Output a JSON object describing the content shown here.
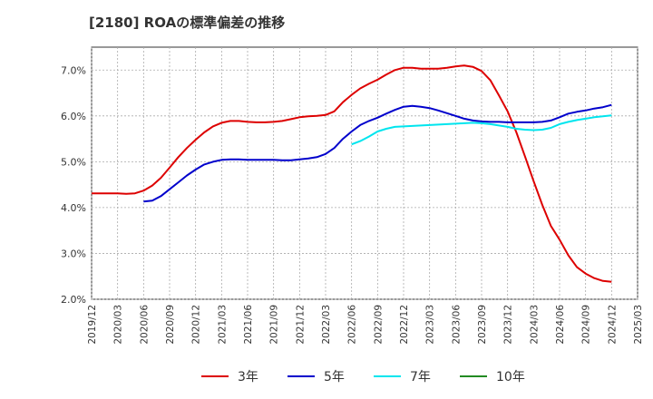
{
  "chart_data": {
    "type": "line",
    "title": "[2180]  ROAの標準偏差の推移",
    "xlabel": "",
    "ylabel": "",
    "ylim": [
      2.0,
      7.5
    ],
    "y_ticks": [
      "2.0%",
      "3.0%",
      "4.0%",
      "5.0%",
      "6.0%",
      "7.0%"
    ],
    "y_tick_values": [
      2.0,
      3.0,
      4.0,
      5.0,
      6.0,
      7.0
    ],
    "x_tick_labels": [
      "2019/12",
      "2020/03",
      "2020/06",
      "2020/09",
      "2020/12",
      "2021/03",
      "2021/06",
      "2021/09",
      "2021/12",
      "2022/03",
      "2022/06",
      "2022/09",
      "2022/12",
      "2023/03",
      "2023/06",
      "2023/09",
      "2023/12",
      "2024/03",
      "2024/06",
      "2024/09",
      "2024/12",
      "2025/03"
    ],
    "grid": true,
    "legend_position": "bottom",
    "series": [
      {
        "name": "3年",
        "color": "#dd0000",
        "x": [
          "2019/12",
          "2020/01",
          "2020/02",
          "2020/03",
          "2020/04",
          "2020/05",
          "2020/06",
          "2020/07",
          "2020/08",
          "2020/09",
          "2020/10",
          "2020/11",
          "2020/12",
          "2021/01",
          "2021/02",
          "2021/03",
          "2021/04",
          "2021/05",
          "2021/06",
          "2021/07",
          "2021/08",
          "2021/09",
          "2021/10",
          "2021/11",
          "2021/12",
          "2022/01",
          "2022/02",
          "2022/03",
          "2022/04",
          "2022/05",
          "2022/06",
          "2022/07",
          "2022/08",
          "2022/09",
          "2022/10",
          "2022/11",
          "2022/12",
          "2023/01",
          "2023/02",
          "2023/03",
          "2023/04",
          "2023/05",
          "2023/06",
          "2023/07",
          "2023/08",
          "2023/09",
          "2023/10",
          "2023/11",
          "2023/12",
          "2024/01",
          "2024/02",
          "2024/03",
          "2024/04",
          "2024/05",
          "2024/06",
          "2024/07",
          "2024/08",
          "2024/09",
          "2024/10",
          "2024/11",
          "2024/12"
        ],
        "values": [
          4.31,
          4.31,
          4.31,
          4.31,
          4.3,
          4.31,
          4.37,
          4.48,
          4.65,
          4.87,
          5.1,
          5.3,
          5.48,
          5.64,
          5.77,
          5.85,
          5.89,
          5.89,
          5.87,
          5.86,
          5.86,
          5.87,
          5.89,
          5.93,
          5.97,
          5.99,
          6.0,
          6.02,
          6.1,
          6.3,
          6.46,
          6.6,
          6.7,
          6.79,
          6.9,
          7.0,
          7.05,
          7.05,
          7.03,
          7.03,
          7.03,
          7.05,
          7.08,
          7.1,
          7.07,
          6.98,
          6.78,
          6.45,
          6.1,
          5.65,
          5.12,
          4.58,
          4.06,
          3.6,
          3.3,
          2.96,
          2.7,
          2.56,
          2.46,
          2.4,
          2.38
        ]
      },
      {
        "name": "5年",
        "color": "#0000cc",
        "x": [
          "2020/06",
          "2020/07",
          "2020/08",
          "2020/09",
          "2020/10",
          "2020/11",
          "2020/12",
          "2021/01",
          "2021/02",
          "2021/03",
          "2021/04",
          "2021/05",
          "2021/06",
          "2021/07",
          "2021/08",
          "2021/09",
          "2021/10",
          "2021/11",
          "2021/12",
          "2022/01",
          "2022/02",
          "2022/03",
          "2022/04",
          "2022/05",
          "2022/06",
          "2022/07",
          "2022/08",
          "2022/09",
          "2022/10",
          "2022/11",
          "2022/12",
          "2023/01",
          "2023/02",
          "2023/03",
          "2023/04",
          "2023/05",
          "2023/06",
          "2023/07",
          "2023/08",
          "2023/09",
          "2023/10",
          "2023/11",
          "2023/12",
          "2024/01",
          "2024/02",
          "2024/03",
          "2024/04",
          "2024/05",
          "2024/06",
          "2024/07",
          "2024/08",
          "2024/09",
          "2024/10",
          "2024/11",
          "2024/12"
        ],
        "values": [
          4.13,
          4.15,
          4.25,
          4.4,
          4.55,
          4.7,
          4.83,
          4.94,
          5.0,
          5.04,
          5.05,
          5.05,
          5.04,
          5.04,
          5.04,
          5.04,
          5.03,
          5.03,
          5.05,
          5.07,
          5.1,
          5.17,
          5.3,
          5.5,
          5.66,
          5.8,
          5.89,
          5.96,
          6.05,
          6.13,
          6.2,
          6.22,
          6.2,
          6.17,
          6.12,
          6.06,
          6.0,
          5.94,
          5.9,
          5.88,
          5.87,
          5.87,
          5.86,
          5.86,
          5.86,
          5.86,
          5.87,
          5.9,
          5.97,
          6.05,
          6.09,
          6.12,
          6.16,
          6.19,
          6.24
        ]
      },
      {
        "name": "7年",
        "color": "#00e5ee",
        "x": [
          "2022/06",
          "2022/07",
          "2022/08",
          "2022/09",
          "2022/10",
          "2022/11",
          "2022/12",
          "2023/01",
          "2023/02",
          "2023/03",
          "2023/04",
          "2023/05",
          "2023/06",
          "2023/07",
          "2023/08",
          "2023/09",
          "2023/10",
          "2023/11",
          "2023/12",
          "2024/01",
          "2024/02",
          "2024/03",
          "2024/04",
          "2024/05",
          "2024/06",
          "2024/07",
          "2024/08",
          "2024/09",
          "2024/10",
          "2024/11",
          "2024/12"
        ],
        "values": [
          5.38,
          5.45,
          5.55,
          5.66,
          5.72,
          5.76,
          5.77,
          5.78,
          5.79,
          5.8,
          5.81,
          5.82,
          5.83,
          5.84,
          5.85,
          5.84,
          5.82,
          5.79,
          5.76,
          5.72,
          5.7,
          5.69,
          5.7,
          5.74,
          5.82,
          5.87,
          5.91,
          5.94,
          5.97,
          5.99,
          6.01
        ]
      },
      {
        "name": "10年",
        "color": "#228b22",
        "x": [],
        "values": []
      }
    ]
  }
}
